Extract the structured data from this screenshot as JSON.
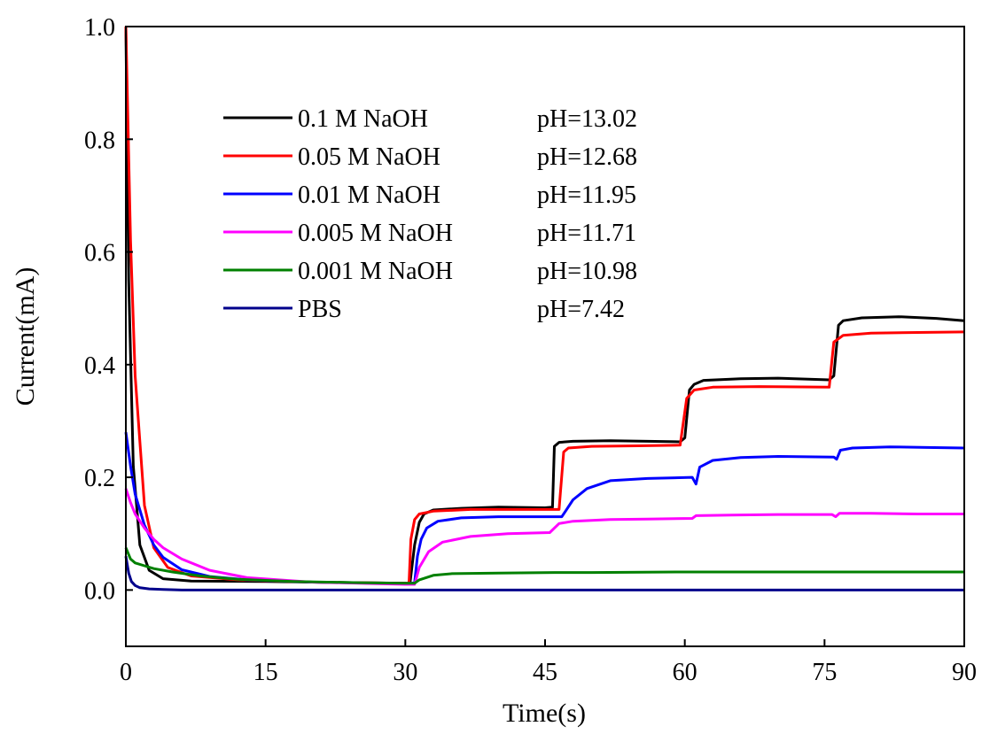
{
  "chart_data": {
    "type": "line",
    "title": "",
    "xlabel": "Time(s)",
    "ylabel": "Current(mA)",
    "xlim": [
      0,
      90
    ],
    "ylim": [
      -0.1,
      1.0
    ],
    "xticks": [
      0,
      15,
      30,
      45,
      60,
      75,
      90
    ],
    "yticks": [
      0.0,
      0.2,
      0.4,
      0.6,
      0.8,
      1.0
    ],
    "xtick_labels": [
      "0",
      "15",
      "30",
      "45",
      "60",
      "75",
      "90"
    ],
    "ytick_labels": [
      "0.0",
      "0.2",
      "0.4",
      "0.6",
      "0.8",
      "1.0"
    ],
    "grid": false,
    "legend_position": "upper-left",
    "series": [
      {
        "name": "0.1 M NaOH",
        "annotation": "pH=13.02",
        "color": "#000000",
        "points": [
          [
            0,
            1.0
          ],
          [
            0.3,
            0.55
          ],
          [
            0.8,
            0.22
          ],
          [
            1.5,
            0.08
          ],
          [
            2.5,
            0.035
          ],
          [
            4,
            0.02
          ],
          [
            7,
            0.016
          ],
          [
            15,
            0.015
          ],
          [
            25,
            0.013
          ],
          [
            30.5,
            0.012
          ],
          [
            31,
            0.08
          ],
          [
            31.5,
            0.12
          ],
          [
            32,
            0.135
          ],
          [
            33,
            0.142
          ],
          [
            36,
            0.145
          ],
          [
            40,
            0.147
          ],
          [
            45,
            0.146
          ],
          [
            45.8,
            0.147
          ],
          [
            46,
            0.255
          ],
          [
            46.5,
            0.262
          ],
          [
            48,
            0.264
          ],
          [
            52,
            0.265
          ],
          [
            56,
            0.264
          ],
          [
            59.5,
            0.263
          ],
          [
            60,
            0.27
          ],
          [
            60.5,
            0.355
          ],
          [
            61,
            0.365
          ],
          [
            62,
            0.372
          ],
          [
            66,
            0.375
          ],
          [
            70,
            0.376
          ],
          [
            75.5,
            0.373
          ],
          [
            76,
            0.38
          ],
          [
            76.5,
            0.47
          ],
          [
            77,
            0.478
          ],
          [
            79,
            0.483
          ],
          [
            83,
            0.485
          ],
          [
            87,
            0.482
          ],
          [
            90,
            0.478
          ]
        ]
      },
      {
        "name": "0.05 M NaOH",
        "annotation": "pH=12.68",
        "color": "#ff0000",
        "points": [
          [
            0,
            1.0
          ],
          [
            0.5,
            0.62
          ],
          [
            1,
            0.38
          ],
          [
            2,
            0.15
          ],
          [
            3,
            0.075
          ],
          [
            4.5,
            0.04
          ],
          [
            7,
            0.025
          ],
          [
            12,
            0.018
          ],
          [
            20,
            0.014
          ],
          [
            30,
            0.012
          ],
          [
            30.4,
            0.012
          ],
          [
            30.6,
            0.09
          ],
          [
            31,
            0.125
          ],
          [
            31.5,
            0.135
          ],
          [
            33,
            0.14
          ],
          [
            37,
            0.143
          ],
          [
            42,
            0.143
          ],
          [
            46.5,
            0.143
          ],
          [
            47,
            0.245
          ],
          [
            47.5,
            0.252
          ],
          [
            50,
            0.255
          ],
          [
            55,
            0.256
          ],
          [
            59.5,
            0.257
          ],
          [
            60.2,
            0.34
          ],
          [
            61,
            0.355
          ],
          [
            63,
            0.36
          ],
          [
            68,
            0.361
          ],
          [
            75.5,
            0.36
          ],
          [
            76,
            0.44
          ],
          [
            77,
            0.452
          ],
          [
            80,
            0.456
          ],
          [
            85,
            0.457
          ],
          [
            90,
            0.458
          ]
        ]
      },
      {
        "name": "0.01 M NaOH",
        "annotation": "pH=11.95",
        "color": "#0000ff",
        "points": [
          [
            0,
            0.28
          ],
          [
            0.5,
            0.22
          ],
          [
            1,
            0.17
          ],
          [
            2,
            0.115
          ],
          [
            3,
            0.08
          ],
          [
            4,
            0.058
          ],
          [
            6,
            0.036
          ],
          [
            9,
            0.024
          ],
          [
            13,
            0.018
          ],
          [
            20,
            0.014
          ],
          [
            30,
            0.011
          ],
          [
            31,
            0.013
          ],
          [
            31.3,
            0.06
          ],
          [
            31.7,
            0.09
          ],
          [
            32.3,
            0.11
          ],
          [
            33.5,
            0.122
          ],
          [
            36,
            0.128
          ],
          [
            40,
            0.13
          ],
          [
            46.8,
            0.13
          ],
          [
            47.2,
            0.14
          ],
          [
            48,
            0.16
          ],
          [
            49.5,
            0.18
          ],
          [
            52,
            0.194
          ],
          [
            56,
            0.198
          ],
          [
            60.8,
            0.2
          ],
          [
            61.2,
            0.188
          ],
          [
            61.6,
            0.218
          ],
          [
            63,
            0.23
          ],
          [
            66,
            0.235
          ],
          [
            70,
            0.237
          ],
          [
            76,
            0.236
          ],
          [
            76.3,
            0.232
          ],
          [
            76.7,
            0.248
          ],
          [
            78,
            0.252
          ],
          [
            82,
            0.254
          ],
          [
            86,
            0.253
          ],
          [
            90,
            0.252
          ]
        ]
      },
      {
        "name": "0.005 M NaOH",
        "annotation": "pH=11.71",
        "color": "#ff00ff",
        "points": [
          [
            0,
            0.18
          ],
          [
            0.5,
            0.155
          ],
          [
            1,
            0.135
          ],
          [
            2,
            0.11
          ],
          [
            3,
            0.09
          ],
          [
            4,
            0.075
          ],
          [
            6,
            0.055
          ],
          [
            9,
            0.035
          ],
          [
            13,
            0.022
          ],
          [
            20,
            0.014
          ],
          [
            30,
            0.01
          ],
          [
            31,
            0.01
          ],
          [
            31.5,
            0.04
          ],
          [
            32.5,
            0.068
          ],
          [
            34,
            0.085
          ],
          [
            37,
            0.095
          ],
          [
            41,
            0.1
          ],
          [
            45.5,
            0.102
          ],
          [
            46,
            0.11
          ],
          [
            46.5,
            0.118
          ],
          [
            48,
            0.122
          ],
          [
            52,
            0.125
          ],
          [
            56,
            0.126
          ],
          [
            60.8,
            0.127
          ],
          [
            61.2,
            0.132
          ],
          [
            65,
            0.133
          ],
          [
            70,
            0.134
          ],
          [
            75.8,
            0.134
          ],
          [
            76.2,
            0.13
          ],
          [
            76.6,
            0.136
          ],
          [
            80,
            0.136
          ],
          [
            85,
            0.135
          ],
          [
            90,
            0.135
          ]
        ]
      },
      {
        "name": "0.001 M NaOH",
        "annotation": "pH=10.98",
        "color": "#008000",
        "points": [
          [
            0,
            0.075
          ],
          [
            0.5,
            0.055
          ],
          [
            1,
            0.048
          ],
          [
            2,
            0.043
          ],
          [
            3,
            0.038
          ],
          [
            5,
            0.032
          ],
          [
            8,
            0.025
          ],
          [
            12,
            0.019
          ],
          [
            18,
            0.015
          ],
          [
            25,
            0.013
          ],
          [
            30,
            0.012
          ],
          [
            31,
            0.012
          ],
          [
            31.5,
            0.018
          ],
          [
            33,
            0.026
          ],
          [
            35,
            0.029
          ],
          [
            40,
            0.03
          ],
          [
            46,
            0.031
          ],
          [
            50,
            0.031
          ],
          [
            60,
            0.032
          ],
          [
            70,
            0.032
          ],
          [
            80,
            0.032
          ],
          [
            90,
            0.032
          ]
        ]
      },
      {
        "name": "PBS",
        "annotation": "pH=7.42",
        "color": "#00008b",
        "points": [
          [
            0,
            0.06
          ],
          [
            0.3,
            0.03
          ],
          [
            0.6,
            0.015
          ],
          [
            1,
            0.008
          ],
          [
            1.5,
            0.004
          ],
          [
            2.5,
            0.002
          ],
          [
            4,
            0.001
          ],
          [
            6,
            0.0
          ],
          [
            30,
            0.0
          ],
          [
            60,
            0.0
          ],
          [
            90,
            0.0
          ]
        ]
      }
    ]
  }
}
